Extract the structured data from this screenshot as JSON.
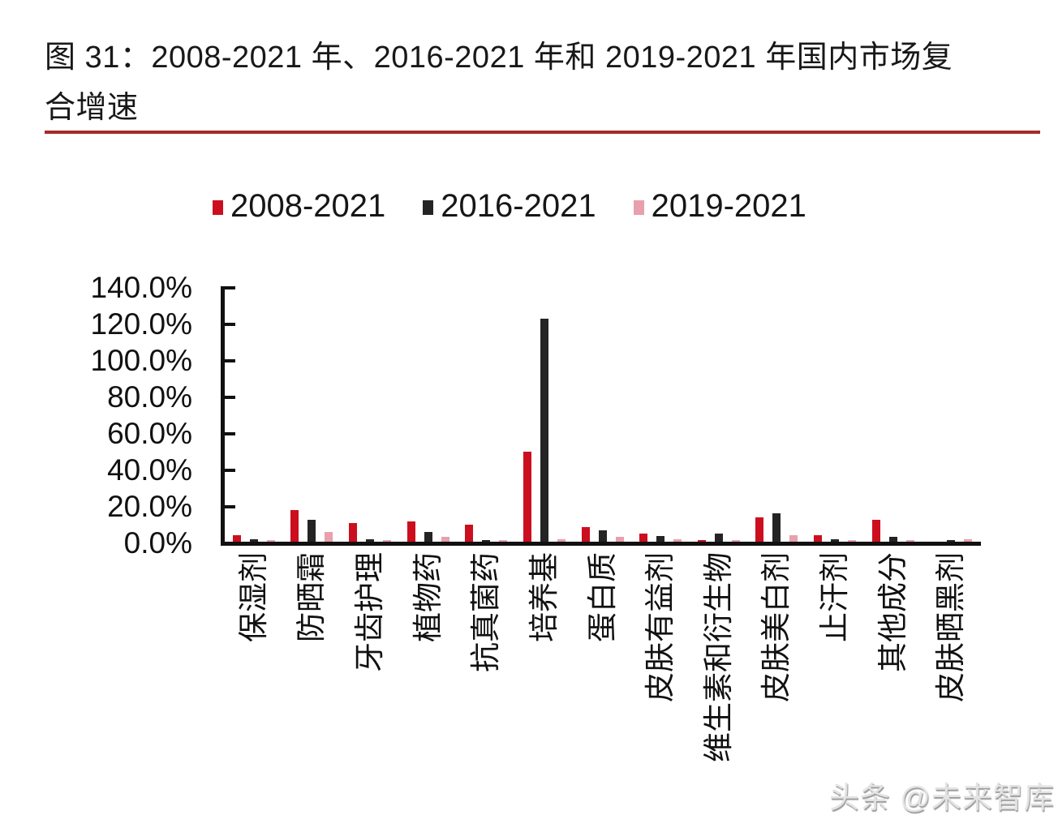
{
  "title": {
    "line1": "图 31：2008-2021 年、2016-2021 年和 2019-2021 年国内市场复",
    "line2": "合增速"
  },
  "watermark": "头条 @未来智库",
  "colors": {
    "series_red": "#CC0F1E",
    "series_black": "#242424",
    "series_pink": "#E8A0AC",
    "title_rule_red": "#A52A2A",
    "axis_black": "#111111"
  },
  "chart_data": {
    "type": "bar",
    "title": "图 31：2008-2021 年、2016-2021 年和 2019-2021 年国内市场复合增速",
    "categories": [
      "保湿剂",
      "防晒霜",
      "牙齿护理",
      "植物药",
      "抗真菌药",
      "培养基",
      "蛋白质",
      "皮肤有益剂",
      "维生素和衍生物",
      "皮肤美白剂",
      "止汗剂",
      "其他成分",
      "皮肤晒黑剂"
    ],
    "series": [
      {
        "name": "2008-2021",
        "color": "#CC0F1E",
        "values": [
          3.5,
          17.5,
          10.0,
          11.0,
          9.5,
          49.5,
          8.0,
          4.5,
          0.5,
          13.5,
          3.5,
          12.0,
          0.0
        ]
      },
      {
        "name": "2016-2021",
        "color": "#242424",
        "values": [
          1.2,
          12.0,
          1.5,
          5.5,
          1.0,
          122.0,
          6.0,
          3.0,
          4.5,
          15.5,
          1.2,
          2.5,
          0.3
        ]
      },
      {
        "name": "2019-2021",
        "color": "#E8A0AC",
        "values": [
          0.4,
          5.5,
          0.5,
          2.5,
          0.3,
          1.5,
          2.5,
          1.5,
          1.0,
          3.5,
          0.3,
          0.5,
          1.3
        ]
      }
    ],
    "ylabel": "",
    "xlabel": "",
    "ylim": [
      0,
      140
    ],
    "ytick_labels": [
      "0.0%",
      "20.0%",
      "40.0%",
      "60.0%",
      "80.0%",
      "100.0%",
      "120.0%",
      "140.0%"
    ],
    "grid": false,
    "legend_position": "top",
    "x_label_rotation": -90
  }
}
